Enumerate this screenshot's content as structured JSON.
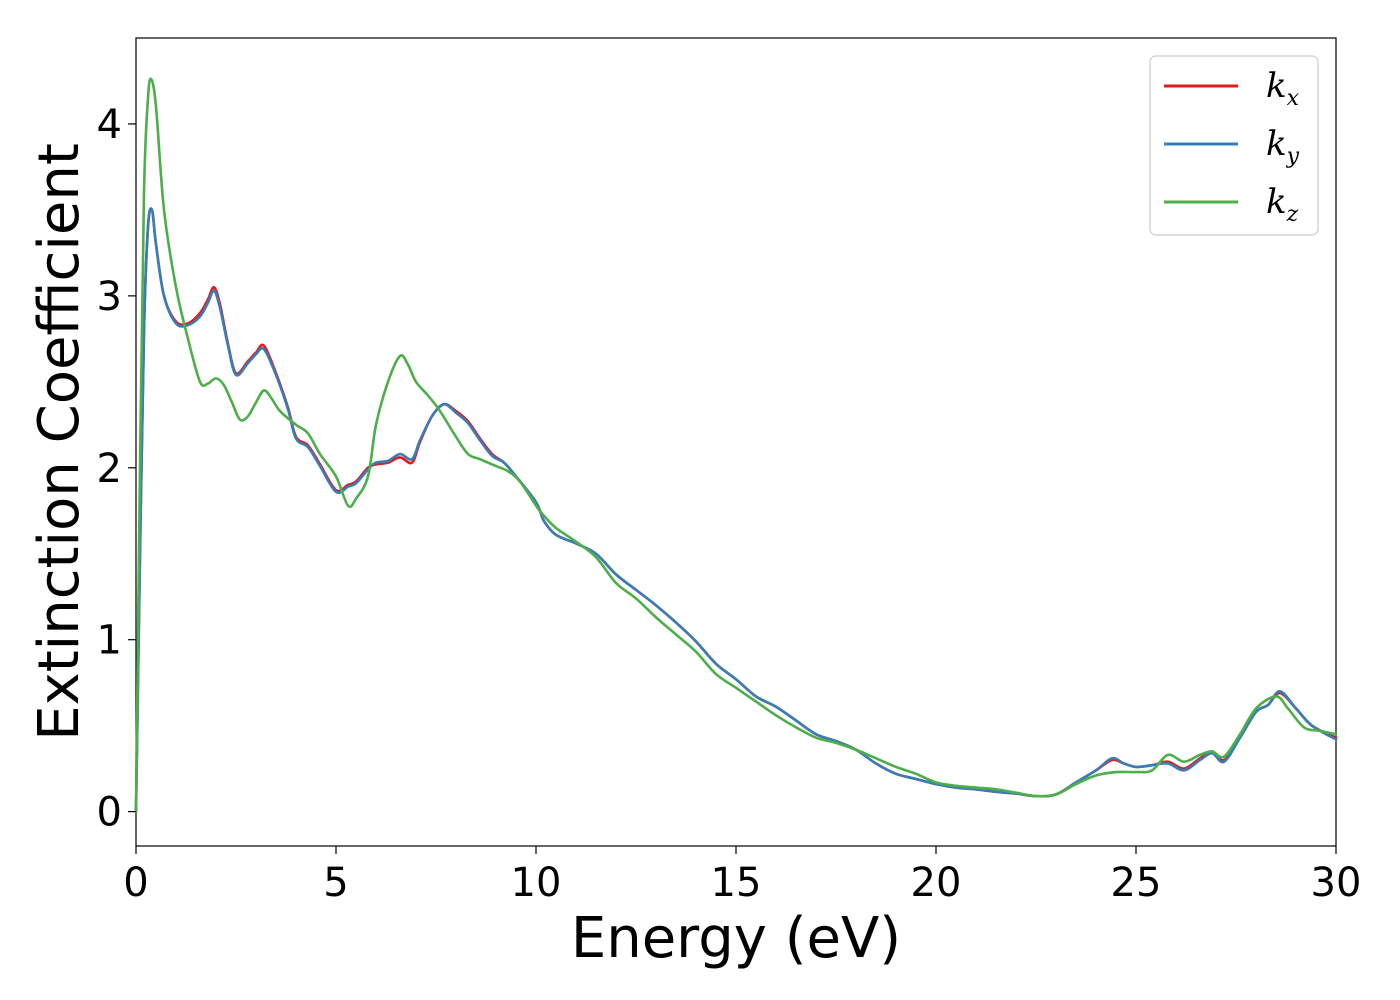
{
  "chart_data": {
    "type": "line",
    "xlabel": "Energy (eV)",
    "ylabel": "Extinction Coefficient",
    "xlim": [
      0,
      30
    ],
    "ylim": [
      -0.2,
      4.5
    ],
    "xticks": [
      0,
      5,
      10,
      15,
      20,
      25,
      30
    ],
    "yticks": [
      0,
      1,
      2,
      3,
      4
    ],
    "xtick_labels": [
      "0",
      "5",
      "10",
      "15",
      "20",
      "25",
      "30"
    ],
    "ytick_labels": [
      "0",
      "1",
      "2",
      "3",
      "4"
    ],
    "grid": false,
    "legend_position": "top-right",
    "series": [
      {
        "name": "k_x",
        "legend_base": "k",
        "legend_sub": "x",
        "color": "#e41a1c",
        "points": [
          [
            0,
            0
          ],
          [
            0.1,
            1.5
          ],
          [
            0.2,
            2.8
          ],
          [
            0.3,
            3.4
          ],
          [
            0.4,
            3.5
          ],
          [
            0.5,
            3.3
          ],
          [
            0.7,
            3.0
          ],
          [
            1.0,
            2.85
          ],
          [
            1.3,
            2.84
          ],
          [
            1.6,
            2.9
          ],
          [
            1.8,
            2.98
          ],
          [
            1.95,
            3.05
          ],
          [
            2.1,
            2.95
          ],
          [
            2.3,
            2.72
          ],
          [
            2.5,
            2.55
          ],
          [
            2.8,
            2.62
          ],
          [
            3.0,
            2.67
          ],
          [
            3.2,
            2.71
          ],
          [
            3.5,
            2.55
          ],
          [
            3.8,
            2.35
          ],
          [
            4.0,
            2.18
          ],
          [
            4.3,
            2.13
          ],
          [
            4.6,
            2.02
          ],
          [
            5.0,
            1.87
          ],
          [
            5.3,
            1.9
          ],
          [
            5.5,
            1.92
          ],
          [
            5.8,
            2.0
          ],
          [
            6.0,
            2.02
          ],
          [
            6.3,
            2.03
          ],
          [
            6.6,
            2.06
          ],
          [
            6.9,
            2.03
          ],
          [
            7.1,
            2.15
          ],
          [
            7.4,
            2.3
          ],
          [
            7.7,
            2.37
          ],
          [
            8.0,
            2.33
          ],
          [
            8.3,
            2.27
          ],
          [
            8.6,
            2.17
          ],
          [
            8.9,
            2.08
          ],
          [
            9.2,
            2.03
          ],
          [
            9.5,
            1.95
          ],
          [
            10.0,
            1.8
          ],
          [
            10.2,
            1.69
          ],
          [
            10.5,
            1.61
          ],
          [
            11.0,
            1.56
          ],
          [
            11.5,
            1.5
          ],
          [
            12.0,
            1.38
          ],
          [
            12.5,
            1.29
          ],
          [
            13.0,
            1.2
          ],
          [
            13.5,
            1.1
          ],
          [
            14.0,
            0.99
          ],
          [
            14.5,
            0.86
          ],
          [
            15.0,
            0.77
          ],
          [
            15.5,
            0.67
          ],
          [
            16.0,
            0.61
          ],
          [
            16.5,
            0.53
          ],
          [
            17.0,
            0.45
          ],
          [
            17.5,
            0.41
          ],
          [
            18.0,
            0.36
          ],
          [
            18.5,
            0.28
          ],
          [
            19.0,
            0.22
          ],
          [
            19.5,
            0.19
          ],
          [
            20.0,
            0.16
          ],
          [
            20.5,
            0.14
          ],
          [
            21.0,
            0.13
          ],
          [
            21.5,
            0.115
          ],
          [
            22.0,
            0.105
          ],
          [
            22.5,
            0.09
          ],
          [
            23.0,
            0.1
          ],
          [
            23.5,
            0.17
          ],
          [
            24.0,
            0.24
          ],
          [
            24.4,
            0.3
          ],
          [
            24.7,
            0.28
          ],
          [
            25.0,
            0.26
          ],
          [
            25.4,
            0.27
          ],
          [
            25.8,
            0.29
          ],
          [
            26.2,
            0.25
          ],
          [
            26.6,
            0.31
          ],
          [
            26.9,
            0.35
          ],
          [
            27.2,
            0.3
          ],
          [
            27.6,
            0.43
          ],
          [
            28.0,
            0.58
          ],
          [
            28.3,
            0.62
          ],
          [
            28.6,
            0.69
          ],
          [
            29.0,
            0.6
          ],
          [
            29.4,
            0.5
          ],
          [
            30.0,
            0.43
          ]
        ]
      },
      {
        "name": "k_y",
        "legend_base": "k",
        "legend_sub": "y",
        "color": "#377eb8",
        "points": [
          [
            0,
            0
          ],
          [
            0.1,
            1.5
          ],
          [
            0.2,
            2.8
          ],
          [
            0.3,
            3.4
          ],
          [
            0.4,
            3.5
          ],
          [
            0.5,
            3.3
          ],
          [
            0.7,
            3.0
          ],
          [
            1.0,
            2.84
          ],
          [
            1.3,
            2.83
          ],
          [
            1.6,
            2.88
          ],
          [
            1.8,
            2.96
          ],
          [
            1.95,
            3.03
          ],
          [
            2.1,
            2.93
          ],
          [
            2.3,
            2.71
          ],
          [
            2.5,
            2.54
          ],
          [
            2.8,
            2.61
          ],
          [
            3.0,
            2.66
          ],
          [
            3.2,
            2.69
          ],
          [
            3.5,
            2.54
          ],
          [
            3.8,
            2.34
          ],
          [
            4.0,
            2.17
          ],
          [
            4.3,
            2.12
          ],
          [
            4.6,
            2.01
          ],
          [
            5.0,
            1.86
          ],
          [
            5.3,
            1.89
          ],
          [
            5.5,
            1.91
          ],
          [
            5.8,
            1.99
          ],
          [
            6.0,
            2.03
          ],
          [
            6.3,
            2.04
          ],
          [
            6.6,
            2.08
          ],
          [
            6.9,
            2.05
          ],
          [
            7.1,
            2.16
          ],
          [
            7.4,
            2.3
          ],
          [
            7.7,
            2.37
          ],
          [
            8.0,
            2.32
          ],
          [
            8.3,
            2.26
          ],
          [
            8.6,
            2.16
          ],
          [
            8.9,
            2.07
          ],
          [
            9.2,
            2.03
          ],
          [
            9.5,
            1.95
          ],
          [
            10.0,
            1.8
          ],
          [
            10.2,
            1.69
          ],
          [
            10.5,
            1.61
          ],
          [
            11.0,
            1.56
          ],
          [
            11.5,
            1.5
          ],
          [
            12.0,
            1.38
          ],
          [
            12.5,
            1.29
          ],
          [
            13.0,
            1.2
          ],
          [
            13.5,
            1.1
          ],
          [
            14.0,
            0.99
          ],
          [
            14.5,
            0.86
          ],
          [
            15.0,
            0.77
          ],
          [
            15.5,
            0.67
          ],
          [
            16.0,
            0.61
          ],
          [
            16.5,
            0.53
          ],
          [
            17.0,
            0.45
          ],
          [
            17.5,
            0.41
          ],
          [
            18.0,
            0.36
          ],
          [
            18.5,
            0.28
          ],
          [
            19.0,
            0.22
          ],
          [
            19.5,
            0.19
          ],
          [
            20.0,
            0.16
          ],
          [
            20.5,
            0.14
          ],
          [
            21.0,
            0.13
          ],
          [
            21.5,
            0.115
          ],
          [
            22.0,
            0.105
          ],
          [
            22.5,
            0.09
          ],
          [
            23.0,
            0.1
          ],
          [
            23.5,
            0.17
          ],
          [
            24.0,
            0.24
          ],
          [
            24.4,
            0.31
          ],
          [
            24.7,
            0.28
          ],
          [
            25.0,
            0.26
          ],
          [
            25.4,
            0.27
          ],
          [
            25.8,
            0.28
          ],
          [
            26.2,
            0.24
          ],
          [
            26.6,
            0.3
          ],
          [
            26.9,
            0.34
          ],
          [
            27.2,
            0.29
          ],
          [
            27.6,
            0.43
          ],
          [
            28.0,
            0.58
          ],
          [
            28.3,
            0.62
          ],
          [
            28.6,
            0.7
          ],
          [
            29.0,
            0.6
          ],
          [
            29.4,
            0.5
          ],
          [
            30.0,
            0.42
          ]
        ]
      },
      {
        "name": "k_z",
        "legend_base": "k",
        "legend_sub": "z",
        "color": "#4daf4a",
        "points": [
          [
            0,
            0
          ],
          [
            0.1,
            2.0
          ],
          [
            0.2,
            3.6
          ],
          [
            0.3,
            4.15
          ],
          [
            0.38,
            4.26
          ],
          [
            0.5,
            4.1
          ],
          [
            0.7,
            3.5
          ],
          [
            1.0,
            3.05
          ],
          [
            1.3,
            2.75
          ],
          [
            1.6,
            2.5
          ],
          [
            1.8,
            2.49
          ],
          [
            2.0,
            2.52
          ],
          [
            2.2,
            2.48
          ],
          [
            2.4,
            2.38
          ],
          [
            2.6,
            2.28
          ],
          [
            2.8,
            2.3
          ],
          [
            3.0,
            2.38
          ],
          [
            3.2,
            2.45
          ],
          [
            3.4,
            2.4
          ],
          [
            3.6,
            2.33
          ],
          [
            4.0,
            2.25
          ],
          [
            4.3,
            2.2
          ],
          [
            4.6,
            2.08
          ],
          [
            5.0,
            1.95
          ],
          [
            5.3,
            1.78
          ],
          [
            5.5,
            1.82
          ],
          [
            5.8,
            1.95
          ],
          [
            6.0,
            2.25
          ],
          [
            6.3,
            2.5
          ],
          [
            6.6,
            2.65
          ],
          [
            6.8,
            2.6
          ],
          [
            7.0,
            2.5
          ],
          [
            7.3,
            2.42
          ],
          [
            7.6,
            2.33
          ],
          [
            8.0,
            2.18
          ],
          [
            8.3,
            2.08
          ],
          [
            8.6,
            2.05
          ],
          [
            9.0,
            2.01
          ],
          [
            9.3,
            1.98
          ],
          [
            9.6,
            1.92
          ],
          [
            10.0,
            1.78
          ],
          [
            10.2,
            1.72
          ],
          [
            10.5,
            1.65
          ],
          [
            11.0,
            1.57
          ],
          [
            11.5,
            1.48
          ],
          [
            12.0,
            1.33
          ],
          [
            12.5,
            1.24
          ],
          [
            13.0,
            1.13
          ],
          [
            13.5,
            1.03
          ],
          [
            14.0,
            0.93
          ],
          [
            14.5,
            0.8
          ],
          [
            15.0,
            0.72
          ],
          [
            15.5,
            0.64
          ],
          [
            16.0,
            0.56
          ],
          [
            16.5,
            0.49
          ],
          [
            17.0,
            0.43
          ],
          [
            17.5,
            0.4
          ],
          [
            18.0,
            0.36
          ],
          [
            18.5,
            0.31
          ],
          [
            19.0,
            0.26
          ],
          [
            19.5,
            0.22
          ],
          [
            20.0,
            0.17
          ],
          [
            20.5,
            0.15
          ],
          [
            21.0,
            0.14
          ],
          [
            21.5,
            0.13
          ],
          [
            22.0,
            0.11
          ],
          [
            22.5,
            0.09
          ],
          [
            23.0,
            0.1
          ],
          [
            23.5,
            0.16
          ],
          [
            24.0,
            0.21
          ],
          [
            24.5,
            0.23
          ],
          [
            25.0,
            0.23
          ],
          [
            25.4,
            0.24
          ],
          [
            25.8,
            0.33
          ],
          [
            26.2,
            0.29
          ],
          [
            26.6,
            0.33
          ],
          [
            26.9,
            0.35
          ],
          [
            27.2,
            0.32
          ],
          [
            27.6,
            0.45
          ],
          [
            28.0,
            0.6
          ],
          [
            28.5,
            0.67
          ],
          [
            28.8,
            0.6
          ],
          [
            29.2,
            0.49
          ],
          [
            29.6,
            0.47
          ],
          [
            30.0,
            0.45
          ]
        ]
      }
    ]
  }
}
